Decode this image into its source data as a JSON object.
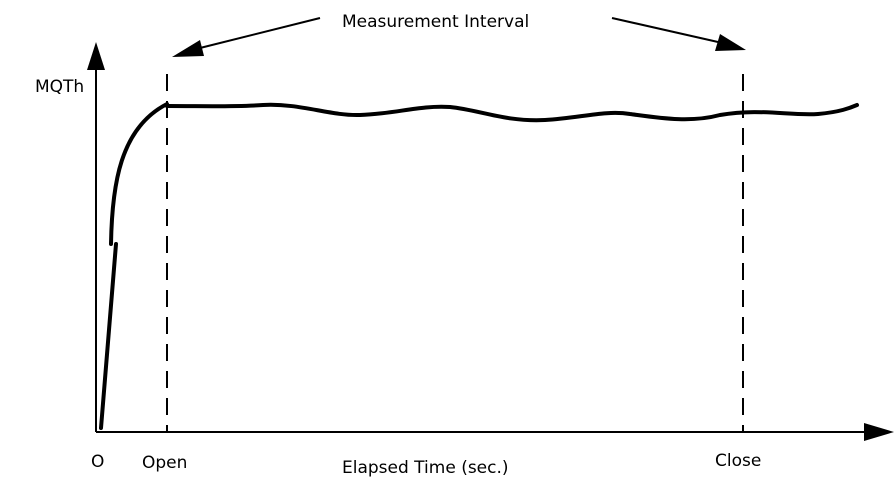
{
  "annotation": {
    "text": "Measurement Interval"
  },
  "axes": {
    "y_label": "MQTh",
    "x_label": "Elapsed Time (sec.)",
    "origin_label": "O"
  },
  "markers": [
    {
      "label": "Open"
    },
    {
      "label": "Close"
    }
  ],
  "colors": {
    "ink": "#000000",
    "background": "#ffffff"
  }
}
